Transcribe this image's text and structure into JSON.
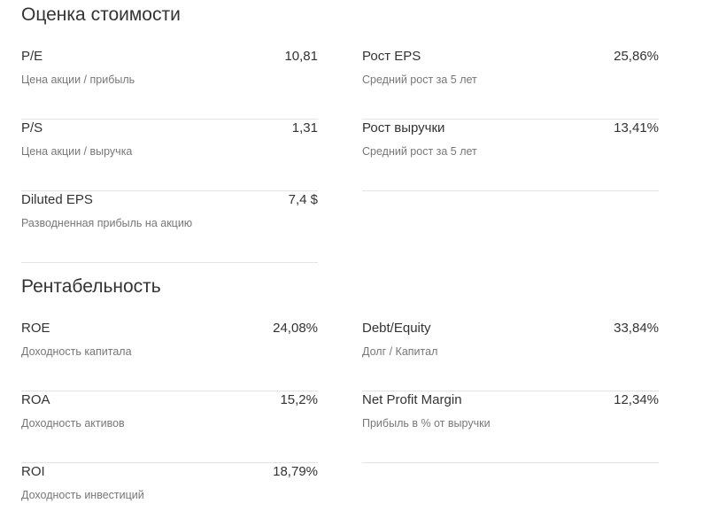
{
  "valuation": {
    "title": "Оценка стоимости",
    "left": [
      {
        "name": "P/E",
        "value": "10,81",
        "desc": "Цена акции / прибыль"
      },
      {
        "name": "P/S",
        "value": "1,31",
        "desc": "Цена акции / выручка"
      },
      {
        "name": "Diluted EPS",
        "value": "7,4 $",
        "desc": "Разводненная прибыль на акцию"
      }
    ],
    "right": [
      {
        "name": "Рост EPS",
        "value": "25,86%",
        "desc": "Средний рост за 5 лет"
      },
      {
        "name": "Рост выручки",
        "value": "13,41%",
        "desc": "Средний рост за 5 лет"
      }
    ]
  },
  "profitability": {
    "title": "Рентабельность",
    "left": [
      {
        "name": "ROE",
        "value": "24,08%",
        "desc": "Доходность капитала"
      },
      {
        "name": "ROA",
        "value": "15,2%",
        "desc": "Доходность активов"
      },
      {
        "name": "ROI",
        "value": "18,79%",
        "desc": "Доходность инвестиций"
      }
    ],
    "right": [
      {
        "name": "Debt/Equity",
        "value": "33,84%",
        "desc": "Долг / Капитал"
      },
      {
        "name": "Net Profit Margin",
        "value": "12,34%",
        "desc": "Прибыль в % от выручки"
      }
    ]
  }
}
